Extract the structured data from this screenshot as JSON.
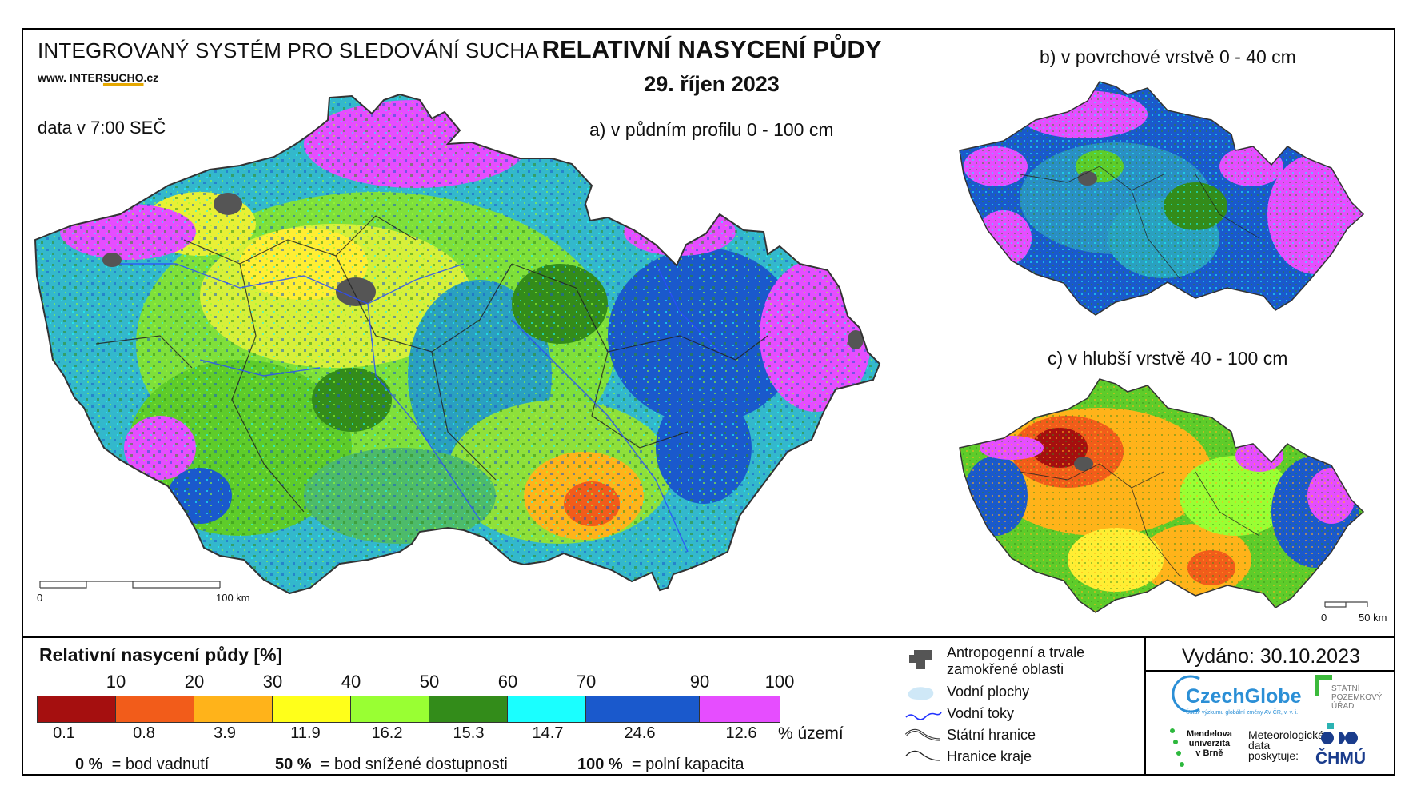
{
  "header": {
    "system_title": "INTEGROVANÝ SYSTÉM PRO SLEDOVÁNÍ SUCHA",
    "website_prefix": "www. INTER",
    "website_highlight": "SUCHO",
    "website_suffix": ".cz",
    "data_time": "data v 7:00 SEČ",
    "main_title": "RELATIVNÍ NASYCENÍ PŮDY",
    "date": "29. říjen 2023"
  },
  "maps": {
    "a_label": "a) v půdním profilu 0 - 100 cm",
    "b_label": "b) v povrchové vrstvě 0 - 40 cm",
    "c_label": "c) v hlubší vrstvě 40 - 100 cm",
    "scale_main": {
      "start": "0",
      "end": "100 km"
    },
    "scale_small": {
      "start": "0",
      "end": "50 km"
    }
  },
  "legend": {
    "title": "Relativní nasycení půdy [%]",
    "ticks": [
      "10",
      "20",
      "30",
      "40",
      "50",
      "60",
      "70",
      "90",
      "100"
    ],
    "classes": [
      {
        "color": "#a50f0f",
        "pct": "0.1"
      },
      {
        "color": "#f25c1a",
        "pct": "0.8"
      },
      {
        "color": "#ffb31a",
        "pct": "3.9"
      },
      {
        "color": "#ffff1a",
        "pct": "11.9"
      },
      {
        "color": "#99ff33",
        "pct": "16.2"
      },
      {
        "color": "#338c1a",
        "pct": "15.3"
      },
      {
        "color": "#1affff",
        "pct": "14.7"
      },
      {
        "color": "#1a59cc",
        "pct": "24.6"
      },
      {
        "color": "#e64dff",
        "pct": "12.6"
      }
    ],
    "pct_unit": "% území",
    "notes": [
      {
        "value": "0 %",
        "text": "= bod vadnutí"
      },
      {
        "value": "50 %",
        "text": "= bod snížené dostupnosti"
      },
      {
        "value": "100 %",
        "text": "= polní kapacita"
      }
    ]
  },
  "symbols": {
    "anthropogenic_1": "Antropogenní a trvale",
    "anthropogenic_2": "zamokřené oblasti",
    "water_bodies": "Vodní plochy",
    "streams": "Vodní toky",
    "state_border": "Státní hranice",
    "region_border": "Hranice kraje"
  },
  "footer": {
    "issued": "Vydáno: 30.10.2023",
    "czechglobe": "CzechGlobe",
    "czechglobe_sub": "Ústav výzkumu globální změny AV ČR, v. v. i.",
    "spu": [
      "STÁTNÍ",
      "POZEMKOVÝ",
      "ÚŘAD"
    ],
    "mendel": [
      "Mendelova",
      "univerzita",
      "v Brně"
    ],
    "meteo": [
      "Meteorologická",
      "data",
      "poskytuje:"
    ],
    "chmu": "ČHMÚ"
  }
}
